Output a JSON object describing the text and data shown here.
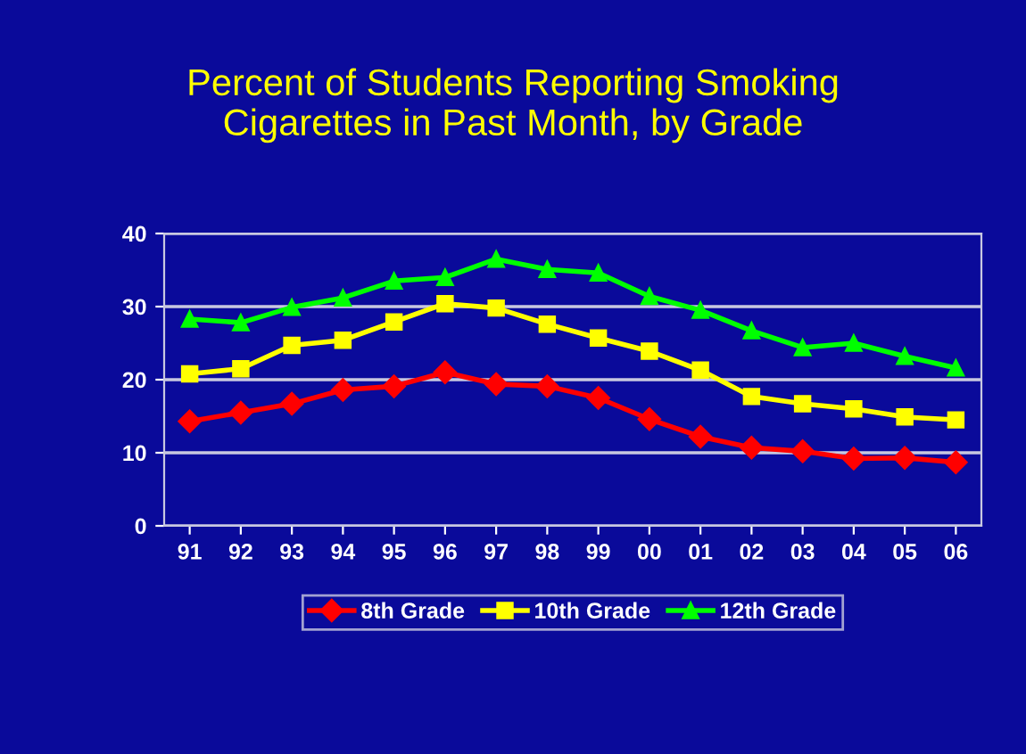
{
  "chart_data": {
    "type": "line",
    "title": "Percent of Students Reporting Smoking\nCigarettes in Past Month, by Grade",
    "categories": [
      "91",
      "92",
      "93",
      "94",
      "95",
      "96",
      "97",
      "98",
      "99",
      "00",
      "01",
      "02",
      "03",
      "04",
      "05",
      "06"
    ],
    "series": [
      {
        "name": "8th Grade",
        "color": "#ff0000",
        "marker": "diamond",
        "values": [
          14.3,
          15.5,
          16.7,
          18.6,
          19.1,
          21.0,
          19.4,
          19.1,
          17.5,
          14.6,
          12.2,
          10.7,
          10.2,
          9.2,
          9.3,
          8.7
        ]
      },
      {
        "name": "10th Grade",
        "color": "#ffff00",
        "marker": "square",
        "values": [
          20.8,
          21.5,
          24.7,
          25.4,
          27.9,
          30.4,
          29.8,
          27.6,
          25.7,
          23.9,
          21.3,
          17.7,
          16.7,
          16.0,
          14.9,
          14.5
        ]
      },
      {
        "name": "12th Grade",
        "color": "#00ff00",
        "marker": "triangle",
        "values": [
          28.3,
          27.8,
          29.9,
          31.2,
          33.5,
          34.0,
          36.5,
          35.1,
          34.6,
          31.4,
          29.5,
          26.7,
          24.4,
          25.0,
          23.2,
          21.6
        ]
      }
    ],
    "ylim": [
      0,
      40
    ],
    "yticks": [
      0,
      10,
      20,
      30,
      40
    ],
    "grid": "y",
    "legend": "bottom",
    "line_style": "solid"
  }
}
